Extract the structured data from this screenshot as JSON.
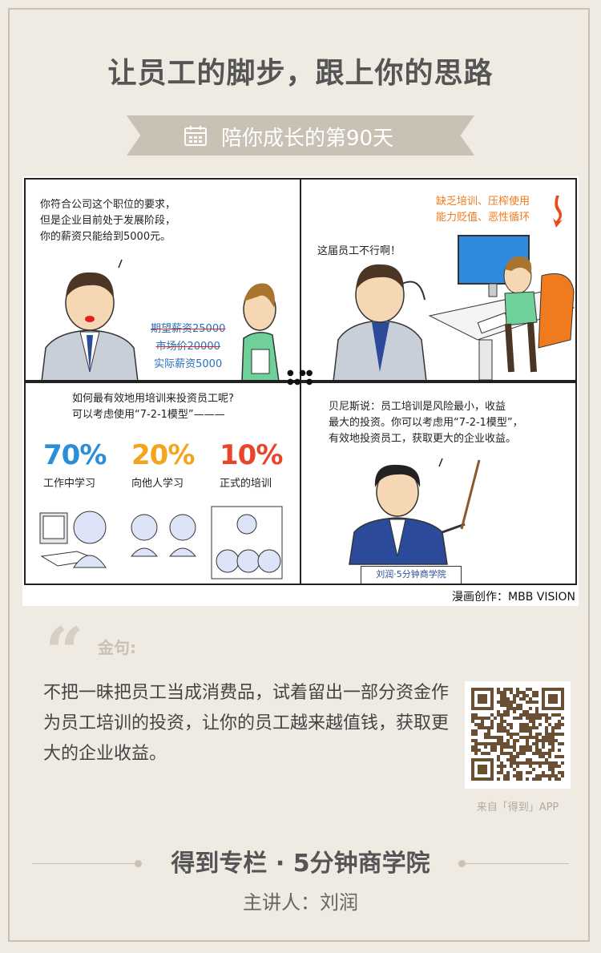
{
  "title": "让员工的脚步，跟上你的思路",
  "ribbon": {
    "label": "陪你成长的第90天"
  },
  "comic": {
    "panel1": {
      "speech": [
        "你符合公司这个职位的要求，",
        "但是企业目前处于发展阶段，",
        "你的薪资只能给到5000元。"
      ],
      "expected": "期望薪资25000",
      "market": "市场价20000",
      "actual": "实际薪资5000"
    },
    "panel2": {
      "note": [
        "缺乏培训、压榨使用",
        "能力贬值、恶性循环"
      ],
      "speech": "这届员工不行啊！"
    },
    "panel3": {
      "speech": [
        "如何最有效地用培训来投资员工呢?",
        "可以考虑使用“7-2-1模型”———"
      ],
      "items": [
        {
          "pct": "70%",
          "label": "工作中学习",
          "color": "#2a8fd6"
        },
        {
          "pct": "20%",
          "label": "向他人学习",
          "color": "#f2a51d"
        },
        {
          "pct": "10%",
          "label": "正式的培训",
          "color": "#e8452c"
        }
      ]
    },
    "panel4": {
      "speech": [
        "贝尼斯说：员工培训是风险最小，收益",
        "最大的投资。你可以考虑用“7-2-1模型”，",
        "有效地投资员工，获取更大的企业收益。"
      ],
      "sign": "刘润·5分钟商学院"
    },
    "credit": "漫画创作：MBB VISION"
  },
  "quote": {
    "label": "金句:",
    "text": "不把一昧把员工当成消费品，试着留出一部分资金作为员工培训的投资，让你的员工越来越值钱，获取更大的企业收益。"
  },
  "qr": {
    "caption": "来自「得到」APP"
  },
  "footer": {
    "title": "得到专栏 · 5分钟商学院",
    "subtitle": "主讲人：刘润"
  }
}
